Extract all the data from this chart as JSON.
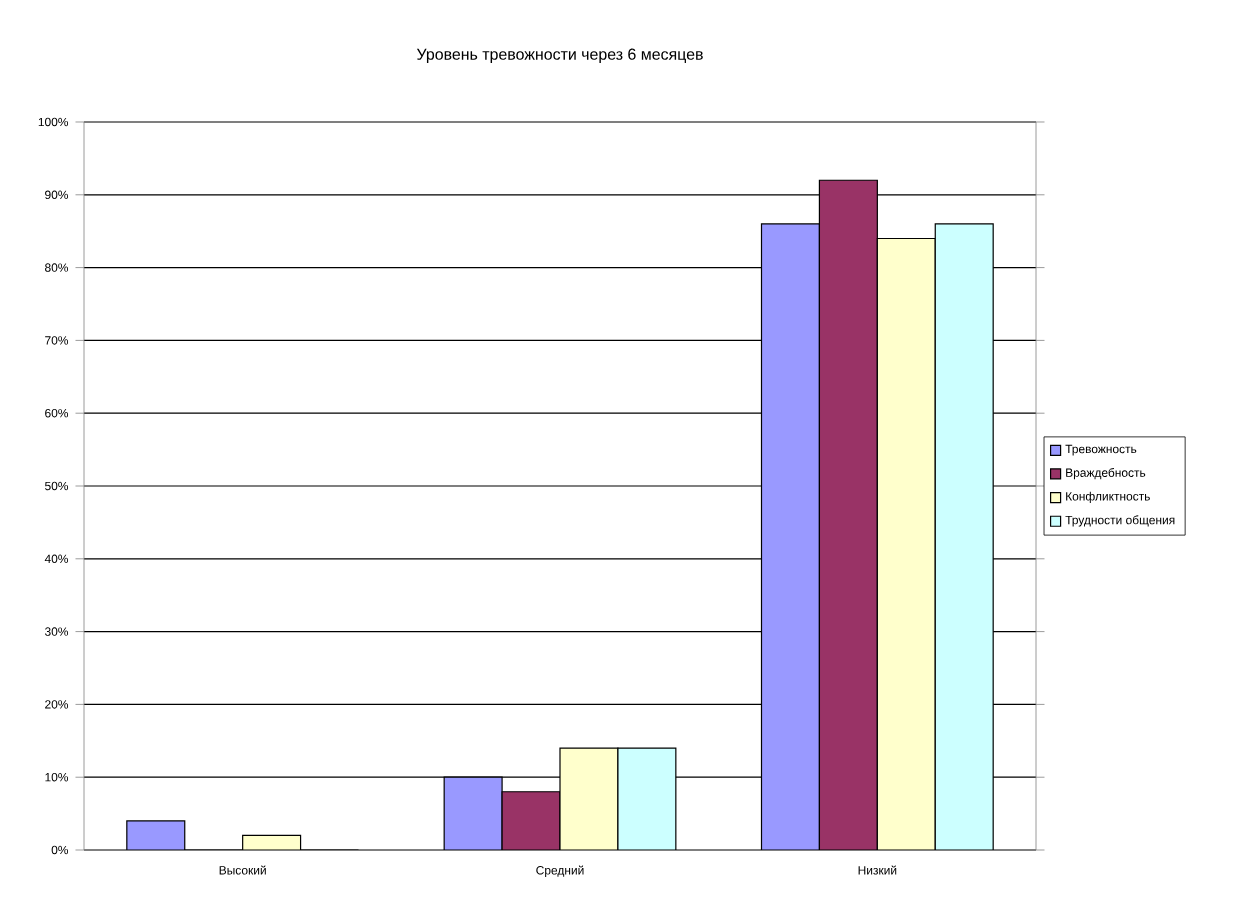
{
  "chart_data": {
    "type": "bar",
    "title": "Уровень тревожности через 6 месяцев",
    "categories": [
      "Высокий",
      "Средний",
      "Низкий"
    ],
    "series": [
      {
        "name": "Тревожность",
        "color": "#9999ff",
        "values": [
          4,
          10,
          86
        ]
      },
      {
        "name": "Враждебность",
        "color": "#993366",
        "values": [
          0,
          8,
          92
        ]
      },
      {
        "name": "Конфликтность",
        "color": "#ffffcc",
        "values": [
          2,
          14,
          84
        ]
      },
      {
        "name": "Трудности общения",
        "color": "#ccffff",
        "values": [
          0,
          14,
          86
        ]
      }
    ],
    "ylim": [
      0,
      100
    ],
    "yticks": [
      {
        "value": 0,
        "label": "0%"
      },
      {
        "value": 10,
        "label": "10%"
      },
      {
        "value": 20,
        "label": "20%"
      },
      {
        "value": 30,
        "label": "30%"
      },
      {
        "value": 40,
        "label": "40%"
      },
      {
        "value": 50,
        "label": "50%"
      },
      {
        "value": 60,
        "label": "60%"
      },
      {
        "value": 70,
        "label": "70%"
      },
      {
        "value": 80,
        "label": "80%"
      },
      {
        "value": 90,
        "label": "90%"
      },
      {
        "value": 100,
        "label": "100%"
      }
    ],
    "grid": "y",
    "legend": "right"
  }
}
